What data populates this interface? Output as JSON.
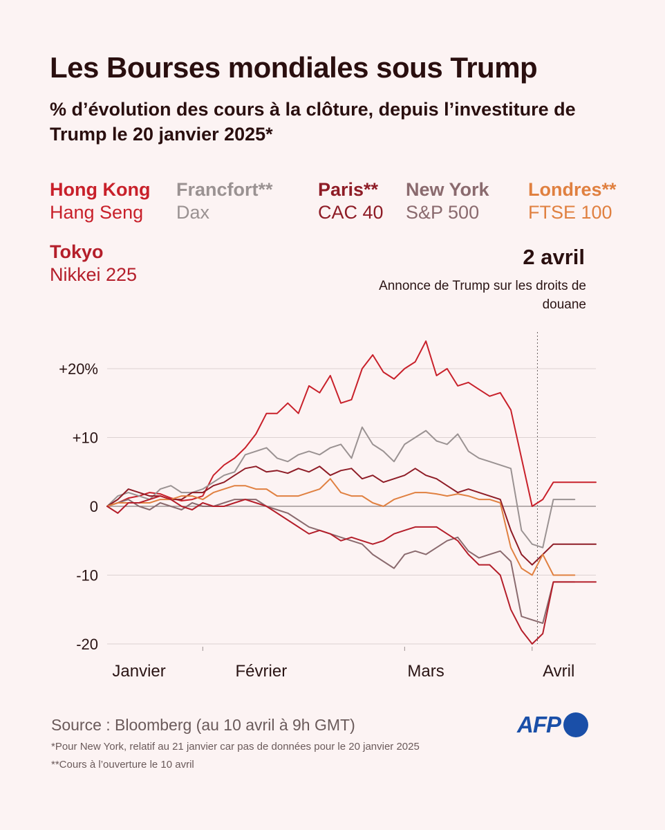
{
  "title": "Les Bourses mondiales sous Trump",
  "subtitle": "% d’évolution des cours à la clôture, depuis l’investiture de Trump le 20 janvier 2025*",
  "legend": [
    {
      "name": "Hong Kong",
      "index": "Hang Seng",
      "color": "#c8202a"
    },
    {
      "name": "Francfort**",
      "index": "Dax",
      "color": "#9a9292"
    },
    {
      "name": "Paris**",
      "index": "CAC 40",
      "color": "#8e1c26"
    },
    {
      "name": "New York",
      "index": "S&P 500",
      "color": "#8a6a6e"
    },
    {
      "name": "Londres**",
      "index": "FTSE 100",
      "color": "#e08040"
    },
    {
      "name": "Tokyo",
      "index": "Nikkei 225",
      "color": "#b41e2a"
    }
  ],
  "annotation": {
    "date": "2 avril",
    "text": "Annonce de Trump sur les droits de douane"
  },
  "source": "Source : Bloomberg (au 10 avril à 9h GMT)",
  "notes": [
    "*Pour New York, relatif au 21 janvier car pas de données pour le 20 janvier 2025",
    "**Cours à l’ouverture le 10 avril"
  ],
  "logo": "AFP",
  "chart_data": {
    "type": "line",
    "x_unit": "trading day since 20 January 2025",
    "ylim": [
      -20,
      26
    ],
    "yticks": [
      {
        "value": 20,
        "label": "+20%"
      },
      {
        "value": 10,
        "label": "+10"
      },
      {
        "value": 0,
        "label": "0"
      },
      {
        "value": -10,
        "label": "-10"
      },
      {
        "value": -20,
        "label": "-20"
      }
    ],
    "month_labels": [
      {
        "label": "Janvier",
        "x": 3
      },
      {
        "label": "Février",
        "x": 14.5
      },
      {
        "label": "Mars",
        "x": 30
      },
      {
        "label": "Avril",
        "x": 42.5
      }
    ],
    "month_boundaries": [
      9,
      28,
      40
    ],
    "event_x": 40.5,
    "event_label": "2 avril",
    "series": [
      {
        "name": "Hong Kong",
        "color": "#c8202a",
        "x": [
          0,
          1,
          2,
          3,
          4,
          5,
          6,
          7,
          8,
          9,
          10,
          11,
          12,
          13,
          14,
          15,
          16,
          17,
          18,
          19,
          20,
          21,
          22,
          23,
          24,
          25,
          26,
          27,
          28,
          29,
          30,
          31,
          32,
          33,
          34,
          35,
          36,
          37,
          38,
          39,
          40,
          41,
          42,
          43,
          44,
          45,
          46
        ],
        "values": [
          0,
          0.5,
          1.2,
          1.5,
          2.0,
          1.8,
          1.2,
          0.8,
          1.0,
          1.5,
          4.5,
          6.0,
          7.0,
          8.5,
          10.5,
          13.5,
          13.5,
          15.0,
          13.5,
          17.5,
          16.5,
          19.0,
          15.0,
          15.5,
          20.0,
          22.0,
          19.5,
          18.5,
          20.0,
          21.0,
          24.0,
          19.0,
          20.0,
          17.5,
          18.0,
          17.0,
          16.0,
          16.5,
          14.0,
          7.0,
          0.0,
          1.0,
          3.5,
          3.5,
          3.5,
          3.5,
          3.5
        ]
      },
      {
        "name": "Francfort**",
        "color": "#9a9292",
        "x": [
          0,
          1,
          2,
          3,
          4,
          5,
          6,
          7,
          8,
          9,
          10,
          11,
          12,
          13,
          14,
          15,
          16,
          17,
          18,
          19,
          20,
          21,
          22,
          23,
          24,
          25,
          26,
          27,
          28,
          29,
          30,
          31,
          32,
          33,
          34,
          35,
          36,
          37,
          38,
          39,
          40,
          41,
          42,
          43,
          44
        ],
        "values": [
          0,
          1.5,
          2.0,
          1.5,
          1.0,
          2.5,
          3.0,
          2.0,
          2.0,
          2.5,
          3.5,
          4.5,
          5.0,
          7.5,
          8.0,
          8.5,
          7.0,
          6.5,
          7.5,
          8.0,
          7.5,
          8.5,
          9.0,
          7.0,
          11.5,
          9.0,
          8.0,
          6.5,
          9.0,
          10.0,
          11.0,
          9.5,
          9.0,
          10.5,
          8.0,
          7.0,
          6.5,
          6.0,
          5.5,
          -3.5,
          -5.5,
          -6.0,
          1.0,
          1.0,
          1.0
        ]
      },
      {
        "name": "Paris**",
        "color": "#8e1c26",
        "x": [
          0,
          1,
          2,
          3,
          4,
          5,
          6,
          7,
          8,
          9,
          10,
          11,
          12,
          13,
          14,
          15,
          16,
          17,
          18,
          19,
          20,
          21,
          22,
          23,
          24,
          25,
          26,
          27,
          28,
          29,
          30,
          31,
          32,
          33,
          34,
          35,
          36,
          37,
          38,
          39,
          40,
          41,
          42,
          43,
          44,
          45,
          46
        ],
        "values": [
          0,
          1.0,
          2.5,
          2.0,
          1.5,
          1.5,
          1.0,
          1.0,
          2.0,
          2.0,
          3.0,
          3.5,
          4.5,
          5.5,
          5.8,
          5.0,
          5.2,
          4.8,
          5.5,
          5.0,
          5.8,
          4.5,
          5.2,
          5.5,
          4.0,
          4.5,
          3.5,
          4.0,
          4.5,
          5.5,
          4.5,
          4.0,
          3.0,
          2.0,
          2.5,
          2.0,
          1.5,
          1.0,
          -3.5,
          -7.0,
          -8.5,
          -7.0,
          -5.5,
          -5.5,
          -5.5,
          -5.5,
          -5.5
        ]
      },
      {
        "name": "New York",
        "color": "#8a6a6e",
        "x": [
          0,
          1,
          2,
          3,
          4,
          5,
          6,
          7,
          8,
          9,
          10,
          11,
          12,
          13,
          14,
          15,
          16,
          17,
          18,
          19,
          20,
          21,
          22,
          23,
          24,
          25,
          26,
          27,
          28,
          29,
          30,
          31,
          32,
          33,
          34,
          35,
          36,
          37,
          38,
          39,
          40,
          41,
          42,
          43,
          44
        ],
        "values": [
          0,
          0.5,
          1.0,
          0,
          -0.5,
          0.5,
          0,
          -0.5,
          0.5,
          0,
          0,
          0.5,
          1.0,
          1.0,
          1.0,
          0,
          -0.5,
          -1.0,
          -2.0,
          -3.0,
          -3.5,
          -4.0,
          -4.5,
          -5.0,
          -5.5,
          -7.0,
          -8.0,
          -9.0,
          -7.0,
          -6.5,
          -7.0,
          -6.0,
          -5.0,
          -4.5,
          -6.5,
          -7.5,
          -7.0,
          -6.5,
          -8.0,
          -16.0,
          -16.5,
          -17.0,
          -11.0,
          -11.0,
          -11.0
        ]
      },
      {
        "name": "Londres**",
        "color": "#e08040",
        "x": [
          0,
          1,
          2,
          3,
          4,
          5,
          6,
          7,
          8,
          9,
          10,
          11,
          12,
          13,
          14,
          15,
          16,
          17,
          18,
          19,
          20,
          21,
          22,
          23,
          24,
          25,
          26,
          27,
          28,
          29,
          30,
          31,
          32,
          33,
          34,
          35,
          36,
          37,
          38,
          39,
          40,
          41,
          42,
          43,
          44
        ],
        "values": [
          0,
          0.5,
          0.5,
          0.5,
          0.5,
          1.0,
          1.0,
          1.5,
          1.5,
          1.0,
          2.0,
          2.5,
          3.0,
          3.0,
          2.5,
          2.5,
          1.5,
          1.5,
          1.5,
          2.0,
          2.5,
          4.0,
          2.0,
          1.5,
          1.5,
          0.5,
          0,
          1.0,
          1.5,
          2.0,
          2.0,
          1.8,
          1.5,
          1.8,
          1.5,
          1.0,
          1.0,
          0.5,
          -6.0,
          -9.0,
          -10.0,
          -7.0,
          -10.0,
          -10.0,
          -10.0
        ]
      },
      {
        "name": "Tokyo",
        "color": "#b41e2a",
        "x": [
          0,
          1,
          2,
          3,
          4,
          5,
          6,
          7,
          8,
          9,
          10,
          11,
          12,
          13,
          14,
          15,
          16,
          17,
          18,
          19,
          20,
          21,
          22,
          23,
          24,
          25,
          26,
          27,
          28,
          29,
          30,
          31,
          32,
          33,
          34,
          35,
          36,
          37,
          38,
          39,
          40,
          41,
          42,
          43,
          44,
          45,
          46
        ],
        "values": [
          0,
          -1.0,
          0.5,
          0.5,
          1.0,
          1.5,
          1.0,
          0,
          -0.5,
          0.5,
          0,
          0,
          0.5,
          1.0,
          0.5,
          0,
          -1.0,
          -2.0,
          -3.0,
          -4.0,
          -3.5,
          -4.0,
          -5.0,
          -4.5,
          -5.0,
          -5.5,
          -5.0,
          -4.0,
          -3.5,
          -3.0,
          -3.0,
          -3.0,
          -4.0,
          -5.0,
          -7.0,
          -8.5,
          -8.5,
          -10.0,
          -15.0,
          -18.0,
          -20.0,
          -18.5,
          -11.0,
          -11.0,
          -11.0,
          -11.0,
          -11.0
        ]
      }
    ]
  }
}
